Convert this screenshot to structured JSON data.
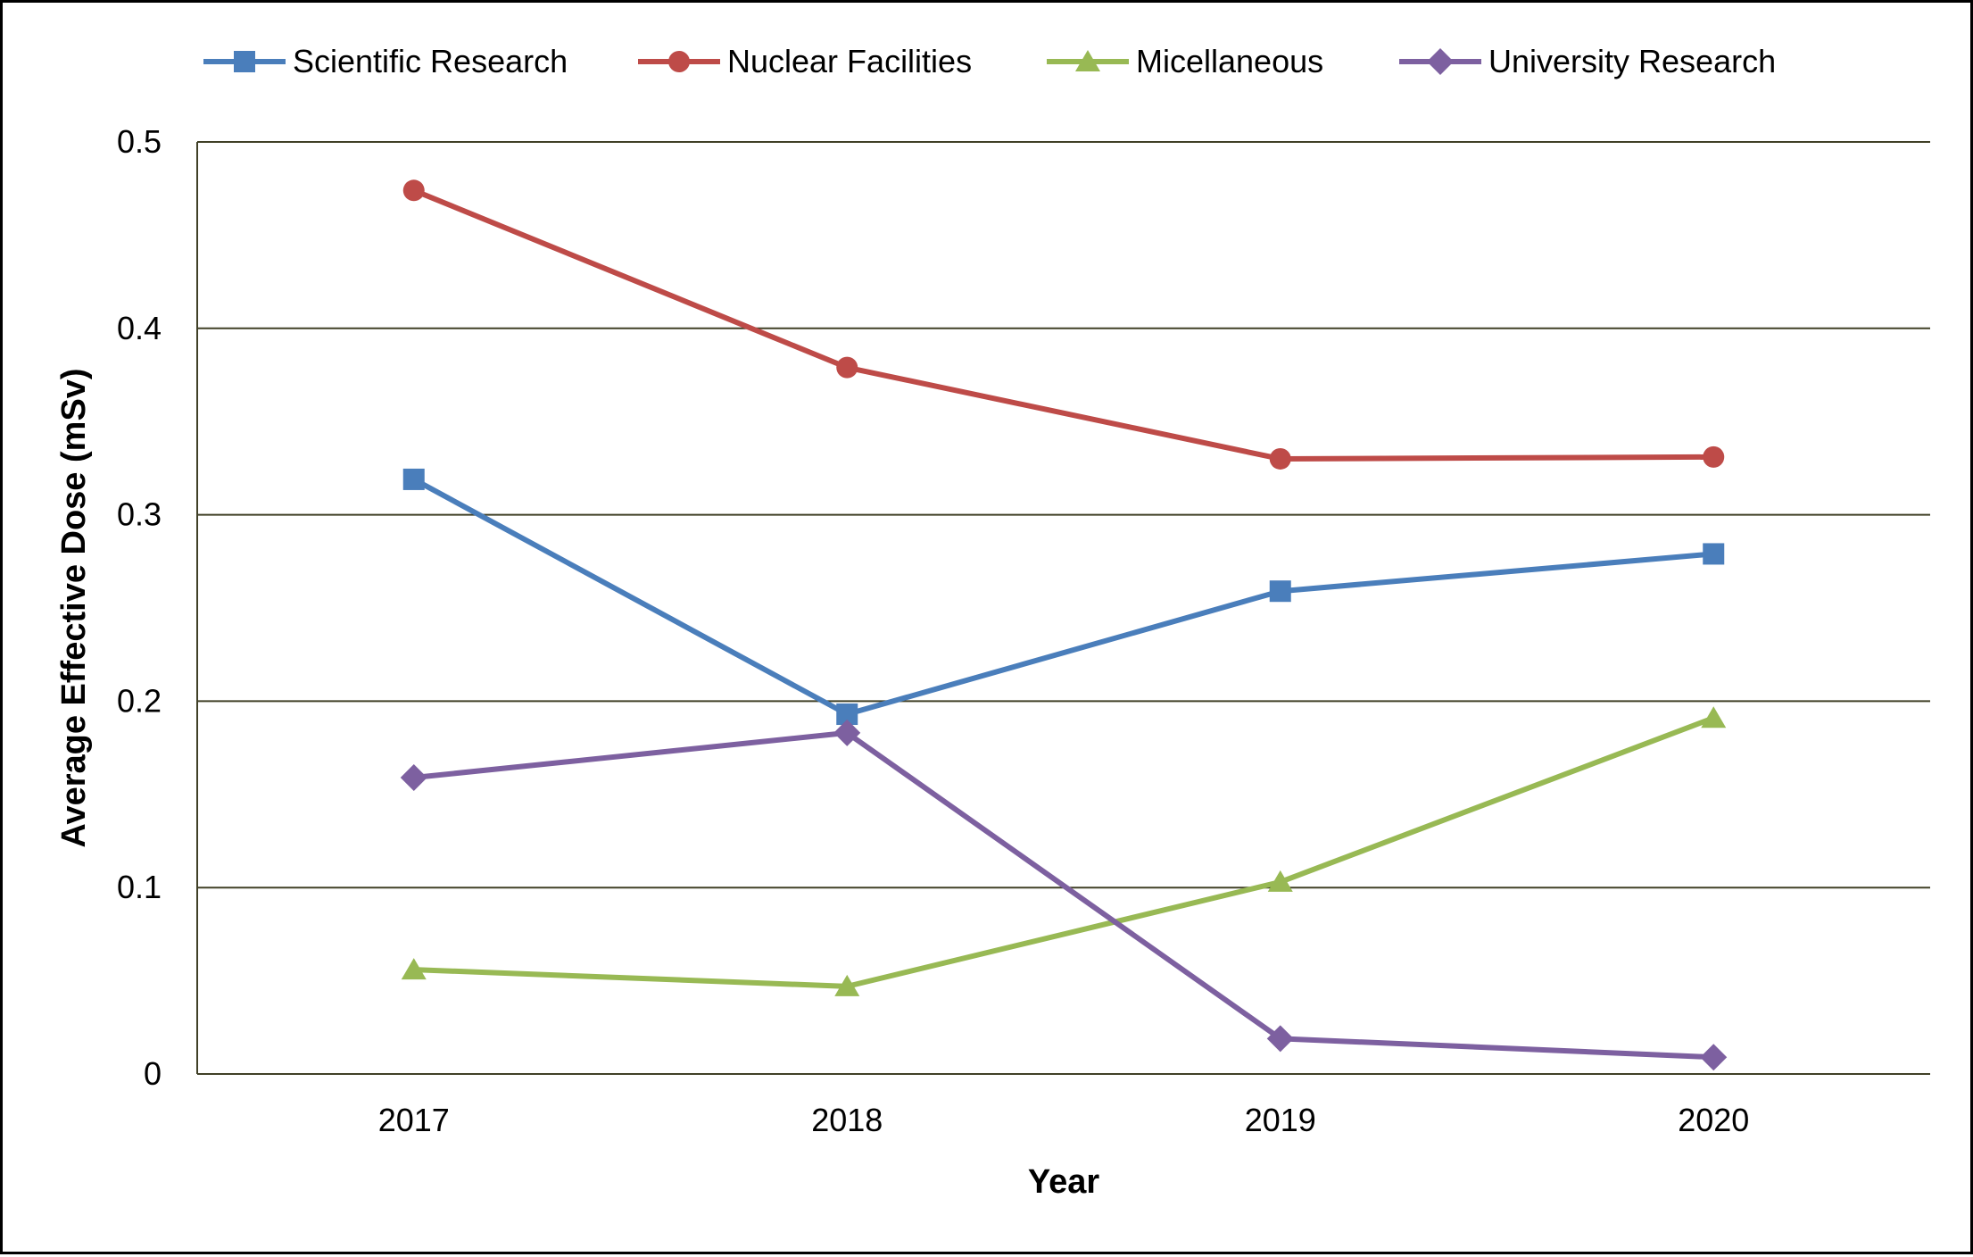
{
  "chart_data": {
    "type": "line",
    "title": "",
    "xlabel": "Year",
    "ylabel": "Average Effective Dose (mSv)",
    "categories": [
      "2017",
      "2018",
      "2019",
      "2020"
    ],
    "ylim": [
      0,
      0.5
    ],
    "yticks": [
      0,
      0.1,
      0.2,
      0.3,
      0.4,
      0.5
    ],
    "ytick_labels": [
      "0",
      "0.1",
      "0.2",
      "0.3",
      "0.4",
      "0.5"
    ],
    "grid": "horizontal",
    "legend_position": "top",
    "series": [
      {
        "name": "Scientific Research",
        "values": [
          0.319,
          0.193,
          0.259,
          0.279
        ],
        "color": "#4a7ebb",
        "marker": "square"
      },
      {
        "name": "Nuclear Facilities",
        "values": [
          0.474,
          0.379,
          0.33,
          0.331
        ],
        "color": "#be4b48",
        "marker": "circle"
      },
      {
        "name": "Micellaneous",
        "values": [
          0.056,
          0.047,
          0.103,
          0.191
        ],
        "color": "#98b954",
        "marker": "triangle"
      },
      {
        "name": "University Research",
        "values": [
          0.159,
          0.183,
          0.019,
          0.009
        ],
        "color": "#7d60a0",
        "marker": "diamond"
      }
    ]
  }
}
